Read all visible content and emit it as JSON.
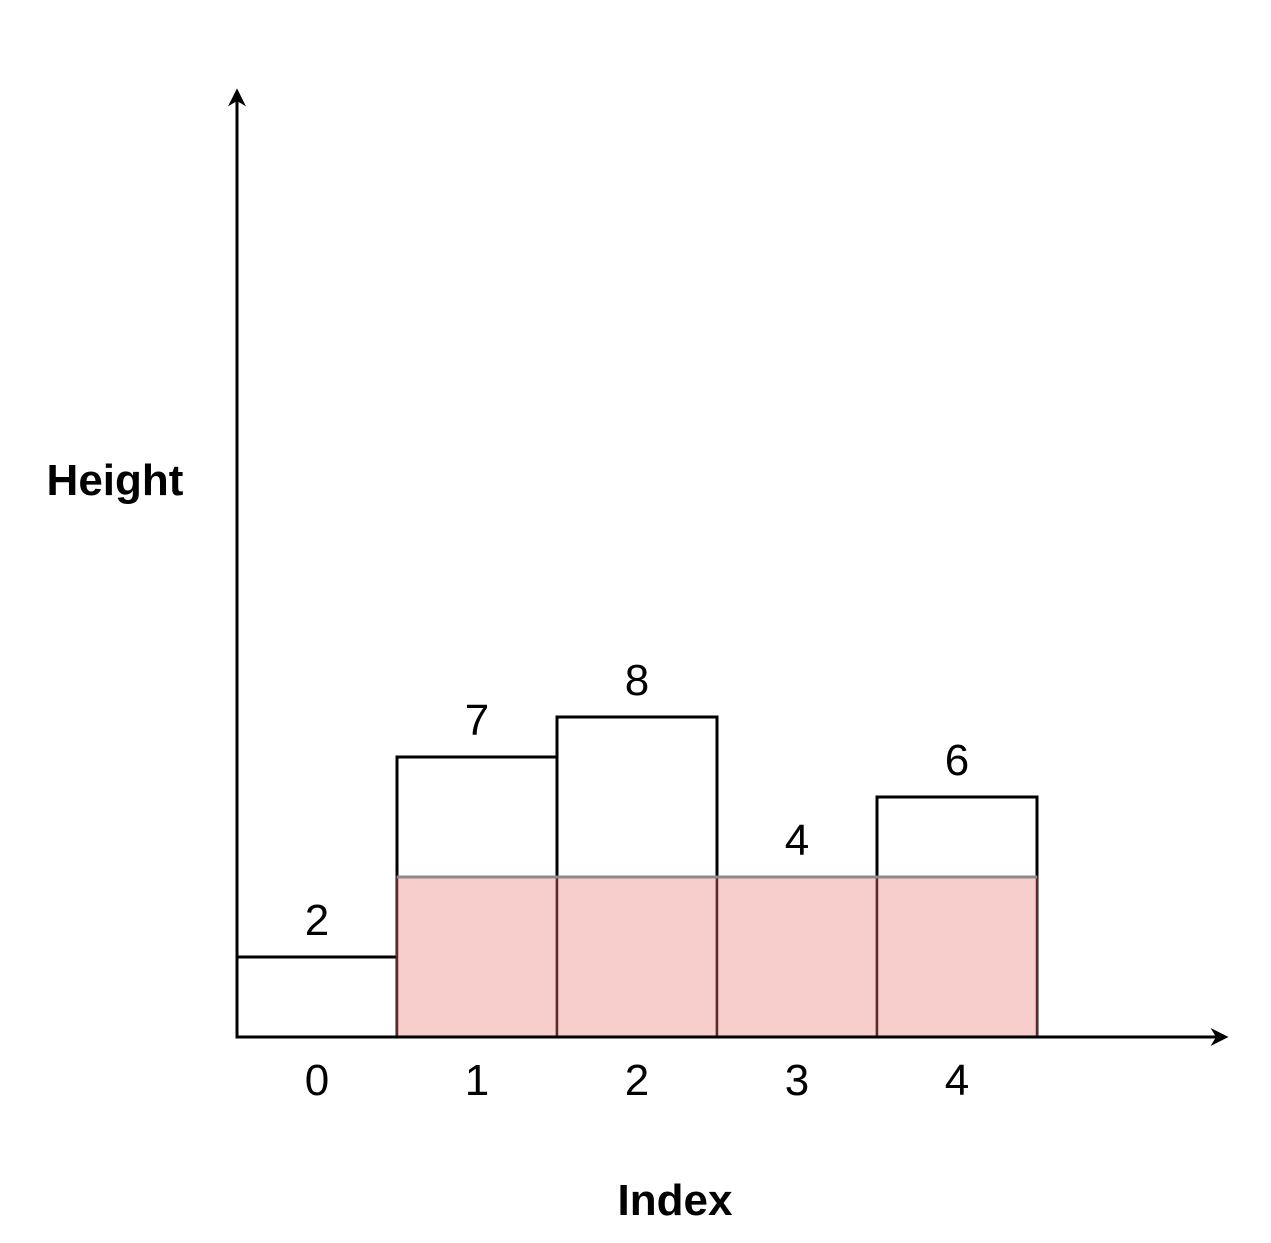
{
  "chart_data": {
    "type": "bar",
    "xlabel": "Index",
    "ylabel": "Height",
    "categories": [
      "0",
      "1",
      "2",
      "3",
      "4"
    ],
    "values": [
      2,
      7,
      8,
      4,
      6
    ],
    "data_labels": [
      "2",
      "7",
      "8",
      "4",
      "6"
    ],
    "highlight": {
      "from_index": 1,
      "to_index": 4,
      "height": 4,
      "color": "#f8cecc"
    },
    "ylim": [
      0,
      10
    ],
    "grid": false,
    "legend": "none",
    "colors": {
      "bar_fill": "#ffffff",
      "bar_stroke": "#000000",
      "highlight_stroke": "#5a2a2a"
    }
  }
}
